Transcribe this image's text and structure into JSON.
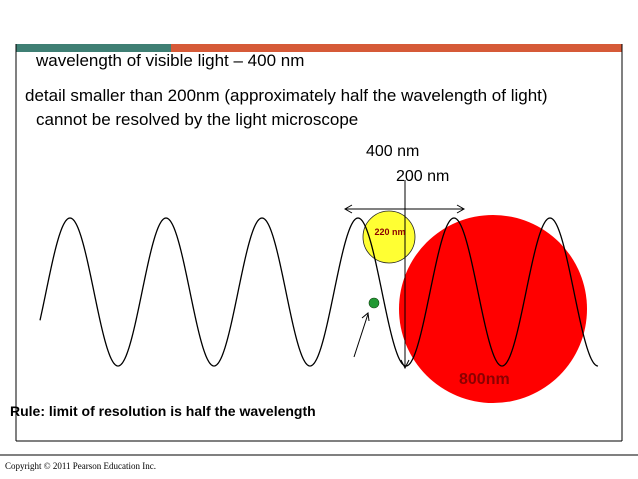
{
  "slide": {
    "line1": "wavelength of visible light – 400 nm",
    "line2": "detail smaller than 200nm (approximately half the wavelength of light)",
    "line3": "cannot be resolved by the light microscope",
    "label_400": "400 nm",
    "label_200": "200 nm",
    "label_220": "220 nm",
    "label_800": "800nm",
    "rule": "Rule: limit of resolution is half the wavelength",
    "footer": "Copyright © 2011 Pearson Education Inc."
  },
  "colors": {
    "bar_teal": "#3f7f74",
    "bar_orange": "#d65a38",
    "red_circle": "#ff0000",
    "yellow_circle": "#ffff33",
    "green_dot": "#229933",
    "label_dark_red": "#8b0000"
  }
}
